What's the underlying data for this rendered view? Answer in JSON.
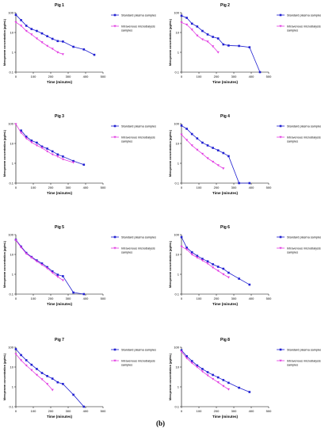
{
  "figure": {
    "label": "(b)"
  },
  "colors": {
    "plasma": "#1f1fd1",
    "microdialysis": "#e23ee2",
    "axis": "#000000"
  },
  "chart_data": [
    {
      "type": "line",
      "title": "Pig 1",
      "xlabel": "Time (minutes)",
      "ylabel": "Meropenem concentration (µg/mL)",
      "xlim": [
        0,
        500
      ],
      "ylim": [
        0.1,
        100
      ],
      "yscale": "log",
      "xticks": [
        "0",
        "100",
        "200",
        "300",
        "400",
        "500"
      ],
      "yticks": [
        "0.1",
        "1",
        "10",
        "100"
      ],
      "legend": "right",
      "series": [
        {
          "name": "Standard plasma samples",
          "marker": "square",
          "x": [
            0,
            30,
            60,
            90,
            120,
            150,
            180,
            210,
            240,
            270,
            330,
            390,
            450
          ],
          "y": [
            78,
            42,
            22,
            15,
            12,
            9,
            6.5,
            4.8,
            3.7,
            3.5,
            1.9,
            1.4,
            0.75
          ]
        },
        {
          "name": "Intravenous microdialysis samples",
          "marker": "triangle-down",
          "x": [
            0,
            30,
            60,
            90,
            120,
            150,
            180,
            210,
            240,
            270
          ],
          "y": [
            33,
            22,
            12,
            8,
            5,
            3.2,
            2.1,
            1.5,
            1.0,
            0.8
          ]
        }
      ]
    },
    {
      "type": "line",
      "title": "Pig 2",
      "xlabel": "Time (minutes)",
      "ylabel": "Meropenem concentration (µg/mL)",
      "xlim": [
        0,
        500
      ],
      "ylim": [
        0.1,
        100
      ],
      "yscale": "log",
      "xticks": [
        "0",
        "100",
        "200",
        "300",
        "400",
        "500"
      ],
      "yticks": [
        "0.1",
        "1",
        "10",
        "100"
      ],
      "legend": "right",
      "series": [
        {
          "name": "Standard plasma samples",
          "marker": "square",
          "x": [
            0,
            30,
            60,
            90,
            120,
            150,
            180,
            210,
            240,
            270,
            330,
            390,
            450
          ],
          "y": [
            70,
            55,
            28,
            20,
            12,
            8,
            6,
            5,
            2.5,
            2.2,
            2.1,
            1.8,
            0.1
          ]
        },
        {
          "name": "Intravenous microdialysis samples",
          "marker": "triangle-down",
          "x": [
            0,
            30,
            60,
            90,
            120,
            150,
            180,
            210
          ],
          "y": [
            32,
            25,
            14,
            7,
            4.5,
            3.5,
            2.0,
            1.0
          ]
        }
      ]
    },
    {
      "type": "line",
      "title": "Pig 3",
      "xlabel": "Time (minutes)",
      "ylabel": "Meropenem concentration (µg/mL)",
      "xlim": [
        0,
        500
      ],
      "ylim": [
        0.1,
        100
      ],
      "yscale": "log",
      "xticks": [
        "0",
        "100",
        "200",
        "300",
        "400",
        "500"
      ],
      "yticks": [
        "0.1",
        "1",
        "10",
        "100"
      ],
      "legend": "right",
      "series": [
        {
          "name": "Standard plasma samples",
          "marker": "square",
          "x": [
            30,
            60,
            90,
            120,
            150,
            180,
            210,
            240,
            270,
            330,
            390
          ],
          "y": [
            45,
            22,
            14,
            11,
            7,
            5.5,
            4,
            2.8,
            2.2,
            1.3,
            0.85
          ]
        },
        {
          "name": "Intravenous microdialysis samples",
          "marker": "triangle-down",
          "x": [
            0,
            30,
            60,
            90,
            120,
            150,
            180,
            210,
            240,
            270,
            330
          ],
          "y": [
            95,
            35,
            18,
            11.5,
            8,
            6,
            4,
            2.8,
            2.2,
            1.6,
            1.1
          ]
        }
      ]
    },
    {
      "type": "line",
      "title": "Pig 4",
      "xlabel": "Time (minutes)",
      "ylabel": "Meropenem concentration (µg/mL)",
      "xlim": [
        0,
        500
      ],
      "ylim": [
        0.1,
        100
      ],
      "yscale": "log",
      "xticks": [
        "0",
        "100",
        "200",
        "300",
        "400",
        "500"
      ],
      "yticks": [
        "0.1",
        "1",
        "10",
        "100"
      ],
      "legend": "right",
      "series": [
        {
          "name": "Standard plasma samples",
          "marker": "square",
          "x": [
            0,
            30,
            60,
            90,
            120,
            150,
            180,
            210,
            240,
            270,
            330,
            390
          ],
          "y": [
            80,
            55,
            30,
            18,
            11,
            8,
            6,
            4.5,
            3.3,
            2.3,
            0.1,
            0.1
          ]
        },
        {
          "name": "Intravenous microdialysis samples",
          "marker": "triangle-down",
          "x": [
            0,
            30,
            60,
            90,
            120,
            150,
            180,
            210,
            240
          ],
          "y": [
            28,
            15,
            8,
            4.8,
            3,
            1.8,
            1.2,
            0.8,
            0.55
          ]
        }
      ]
    },
    {
      "type": "line",
      "title": "Pig 5",
      "xlabel": "Time (minutes)",
      "ylabel": "Meropenem concentration (µg/mL)",
      "xlim": [
        0,
        500
      ],
      "ylim": [
        0.1,
        100
      ],
      "yscale": "log",
      "xticks": [
        "0",
        "100",
        "200",
        "300",
        "400",
        "500"
      ],
      "yticks": [
        "0.1",
        "1",
        "10",
        "100"
      ],
      "legend": "right",
      "series": [
        {
          "name": "Standard plasma samples",
          "marker": "square",
          "x": [
            0,
            30,
            60,
            90,
            120,
            150,
            180,
            210,
            240,
            270,
            330,
            390
          ],
          "y": [
            55,
            25,
            12,
            7.5,
            5,
            3.5,
            2.3,
            1.4,
            0.95,
            0.8,
            0.12,
            0.1
          ]
        },
        {
          "name": "Intravenous microdialysis samples",
          "marker": "triangle-down",
          "x": [
            0,
            30,
            60,
            90,
            120,
            150,
            180,
            210,
            240,
            270
          ],
          "y": [
            52,
            23,
            11,
            7,
            4.5,
            3.0,
            2.0,
            1.2,
            0.75,
            0.5
          ]
        }
      ]
    },
    {
      "type": "line",
      "title": "Pig 6",
      "xlabel": "Time (minutes)",
      "ylabel": "Meropenem concentration (µg/mL)",
      "xlim": [
        0,
        500
      ],
      "ylim": [
        0.1,
        100
      ],
      "yscale": "log",
      "xticks": [
        "0",
        "100",
        "200",
        "300",
        "400",
        "500"
      ],
      "yticks": [
        "0.1",
        "1",
        "10",
        "100"
      ],
      "legend": "right",
      "series": [
        {
          "name": "Standard plasma samples",
          "marker": "square",
          "x": [
            0,
            30,
            60,
            90,
            120,
            150,
            180,
            210,
            240,
            270,
            330,
            390
          ],
          "y": [
            75,
            22,
            13,
            8.5,
            6,
            4.5,
            3.2,
            2.4,
            1.9,
            1.2,
            0.6,
            0.3
          ]
        },
        {
          "name": "Intravenous microdialysis samples",
          "marker": "triangle-down",
          "x": [
            0,
            30,
            60,
            90,
            120,
            150,
            180,
            210,
            240,
            270
          ],
          "y": [
            25,
            18,
            10,
            7,
            5,
            3.5,
            2.2,
            1.5,
            1.0,
            0.7
          ]
        }
      ]
    },
    {
      "type": "line",
      "title": "Pig 7",
      "xlabel": "Time (minutes)",
      "ylabel": "Meropenem concentration (µg/mL)",
      "xlim": [
        0,
        500
      ],
      "ylim": [
        0.1,
        100
      ],
      "yscale": "log",
      "xticks": [
        "0",
        "100",
        "200",
        "300",
        "400",
        "500"
      ],
      "yticks": [
        "0.1",
        "1",
        "10",
        "100"
      ],
      "legend": "right",
      "series": [
        {
          "name": "Standard plasma samples",
          "marker": "square",
          "x": [
            0,
            30,
            60,
            90,
            120,
            150,
            180,
            210,
            240,
            270,
            330,
            390
          ],
          "y": [
            80,
            40,
            22,
            13,
            8,
            5,
            3.5,
            2.6,
            1.7,
            1.4,
            0.4,
            0.1
          ]
        },
        {
          "name": "Intravenous microdialysis samples",
          "marker": "triangle-down",
          "x": [
            0,
            30,
            60,
            90,
            120,
            150,
            180,
            210
          ],
          "y": [
            45,
            22,
            12,
            7,
            4,
            2.4,
            1.4,
            0.7
          ]
        }
      ]
    },
    {
      "type": "line",
      "title": "Pig 8",
      "xlabel": "Time (minutes)",
      "ylabel": "Meropenem concentration (µg/mL)",
      "xlim": [
        0,
        500
      ],
      "ylim": [
        0.1,
        100
      ],
      "yscale": "log",
      "xticks": [
        "0",
        "100",
        "200",
        "300",
        "400",
        "500"
      ],
      "yticks": [
        "0.1",
        "1",
        "10",
        "100"
      ],
      "legend": "right",
      "series": [
        {
          "name": "Standard plasma samples",
          "marker": "square",
          "x": [
            0,
            30,
            60,
            90,
            120,
            150,
            180,
            210,
            240,
            270,
            330,
            390
          ],
          "y": [
            70,
            35,
            20,
            12,
            8,
            5.5,
            4,
            3,
            2.2,
            1.6,
            0.9,
            0.55
          ]
        },
        {
          "name": "Intravenous microdialysis samples",
          "marker": "triangle-down",
          "x": [
            0,
            30,
            60,
            90,
            120,
            150,
            180,
            210,
            240,
            270
          ],
          "y": [
            60,
            28,
            16,
            10,
            6,
            3.8,
            2.5,
            1.7,
            1.1,
            0.75
          ]
        }
      ]
    }
  ]
}
